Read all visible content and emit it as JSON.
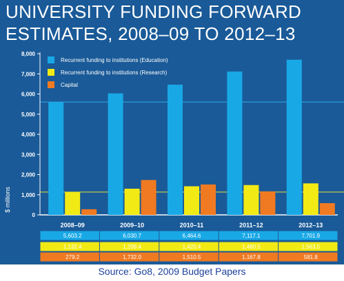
{
  "title": {
    "line1": "UNIVERSITY FUNDING FORWARD",
    "line2": "ESTIMATES, 2008–09 TO 2012–13"
  },
  "source": "Source: Go8, 2009 Budget Papers",
  "colors": {
    "background": "#1a5a98",
    "education": "#19a8e6",
    "research": "#f2ea14",
    "capital": "#ef7a22",
    "reference_line_top": "#31aee6",
    "reference_line_bottom": "#e9e23a"
  },
  "chart_data": {
    "type": "bar",
    "categories": [
      "2008–09",
      "2009–10",
      "2010–11",
      "2011–12",
      "2012–13"
    ],
    "series": [
      {
        "name": "Recurrent funding to institutions (Education)",
        "values": [
          5603.2,
          6030.7,
          6464.6,
          7117.1,
          7701.9
        ],
        "labels": [
          "5,603.2",
          "6,030.7",
          "6,464.6",
          "7,117.1",
          "7,701.9"
        ]
      },
      {
        "name": "Recurrent funding to institutions (Research)",
        "values": [
          1132.4,
          1299.4,
          1420.4,
          1480.5,
          1563.5
        ],
        "labels": [
          "1,132.4",
          "1,299.4",
          "1,420.4",
          "1,480.5",
          "1,563.5"
        ]
      },
      {
        "name": "Capital",
        "values": [
          279.2,
          1732.0,
          1510.5,
          1167.8,
          581.8
        ],
        "labels": [
          "279.2",
          "1,732.0",
          "1,510.5",
          "1,167.8",
          "581.8"
        ]
      }
    ],
    "ylabel": "$ millions",
    "ylim": [
      0,
      8000
    ],
    "yticks": [
      0,
      1000,
      2000,
      3000,
      4000,
      5000,
      6000,
      7000,
      8000
    ],
    "ytick_labels": [
      "0",
      "1,000",
      "2,000",
      "3,000",
      "4,000",
      "5,000",
      "6,000",
      "7,000",
      "8,000"
    ],
    "reference_lines": [
      5603.2,
      1132.4
    ],
    "legend_position": "top-left",
    "grid": false,
    "data_table": true
  }
}
